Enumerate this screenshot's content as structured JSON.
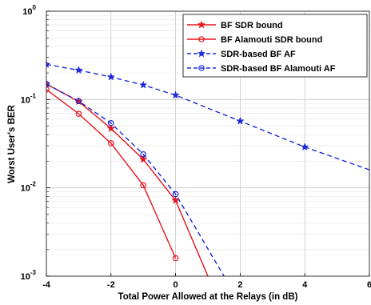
{
  "chart_data": {
    "type": "line",
    "xlabel": "Total Power Allowed at the Relays (in dB)",
    "ylabel": "Worst User's BER",
    "xlim": [
      -4,
      6
    ],
    "ylim": [
      0.001,
      1
    ],
    "yscale": "log",
    "grid": true,
    "legend_position": "top-right",
    "x_ticks": [
      {
        "value": -4,
        "label": "-4"
      },
      {
        "value": -2,
        "label": "-2"
      },
      {
        "value": 0,
        "label": "0"
      },
      {
        "value": 2,
        "label": "2"
      },
      {
        "value": 4,
        "label": "4"
      },
      {
        "value": 6,
        "label": "6"
      }
    ],
    "y_ticks": [
      {
        "value": 0.001,
        "base": "10",
        "exp": "-3"
      },
      {
        "value": 0.01,
        "base": "10",
        "exp": "-2"
      },
      {
        "value": 0.1,
        "base": "10",
        "exp": "-1"
      },
      {
        "value": 1,
        "base": "10",
        "exp": "0"
      }
    ],
    "series": [
      {
        "name": "BF SDR bound",
        "color": "#e8141e",
        "line_style": "solid",
        "marker": "star",
        "x": [
          -4,
          -3,
          -2,
          -1,
          0,
          1
        ],
        "y": [
          0.15,
          0.095,
          0.047,
          0.021,
          0.0072,
          0.001
        ]
      },
      {
        "name": "BF Alamouti SDR bound",
        "color": "#e8141e",
        "line_style": "solid",
        "marker": "circle",
        "x": [
          -4,
          -3,
          -2,
          -1,
          0
        ],
        "y": [
          0.13,
          0.069,
          0.032,
          0.0107,
          0.0016
        ]
      },
      {
        "name": "SDR-based BF AF",
        "color": "#1c2bd6",
        "line_style": "dashed",
        "marker": "star",
        "x": [
          -4,
          -3,
          -2,
          -1,
          0,
          2,
          4,
          6
        ],
        "y": [
          0.25,
          0.215,
          0.18,
          0.146,
          0.112,
          0.057,
          0.029,
          0.016
        ]
      },
      {
        "name": "SDR-based BF Alamouti AF",
        "color": "#1c2bd6",
        "line_style": "dashed",
        "marker": "circle",
        "x": [
          -4,
          -3,
          -2,
          -1,
          0,
          1.5
        ],
        "y": [
          0.15,
          0.096,
          0.054,
          0.024,
          0.0085,
          0.001
        ]
      }
    ]
  }
}
